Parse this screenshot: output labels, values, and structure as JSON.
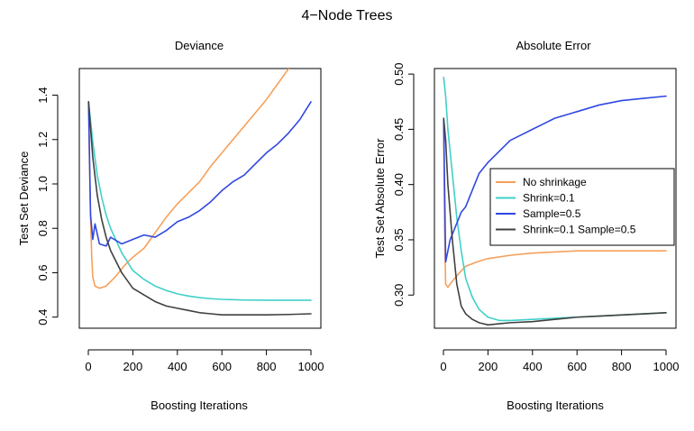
{
  "figure": {
    "title": "4−Node Trees"
  },
  "colors": {
    "no_shrinkage": "#F5A05A",
    "shrink": "#40D0C8",
    "sample": "#3048E0",
    "shrink_sample": "#404040"
  },
  "chart_data": [
    {
      "type": "line",
      "title": "Deviance",
      "xlabel": "Boosting Iterations",
      "ylabel": "Test Set Deviance",
      "xlim": [
        0,
        1000
      ],
      "ylim": [
        0.35,
        1.52
      ],
      "xticks": [
        "0",
        "200",
        "400",
        "600",
        "800",
        "1000"
      ],
      "yticks": [
        "0.4",
        "0.6",
        "0.8",
        "1.0",
        "1.2",
        "1.4"
      ],
      "grid": false,
      "legend": "none",
      "series": [
        {
          "name": "No shrinkage",
          "color": "#F5A05A",
          "x": [
            1,
            5,
            10,
            15,
            20,
            30,
            50,
            80,
            120,
            160,
            200,
            250,
            300,
            350,
            400,
            450,
            500,
            550,
            600,
            650,
            700,
            750,
            800,
            850,
            900
          ],
          "y": [
            1.37,
            1.1,
            0.85,
            0.68,
            0.58,
            0.54,
            0.53,
            0.54,
            0.58,
            0.63,
            0.67,
            0.71,
            0.78,
            0.85,
            0.91,
            0.96,
            1.01,
            1.08,
            1.14,
            1.2,
            1.26,
            1.32,
            1.38,
            1.45,
            1.52
          ]
        },
        {
          "name": "Shrink=0.1",
          "color": "#40D0C8",
          "x": [
            1,
            20,
            40,
            60,
            80,
            100,
            150,
            200,
            250,
            300,
            350,
            400,
            450,
            500,
            550,
            600,
            700,
            800,
            900,
            1000
          ],
          "y": [
            1.37,
            1.19,
            1.04,
            0.94,
            0.86,
            0.8,
            0.69,
            0.61,
            0.57,
            0.54,
            0.52,
            0.505,
            0.495,
            0.488,
            0.483,
            0.48,
            0.477,
            0.476,
            0.476,
            0.476
          ]
        },
        {
          "name": "Sample=0.5",
          "color": "#3048E0",
          "x": [
            1,
            10,
            20,
            30,
            50,
            80,
            100,
            150,
            200,
            250,
            300,
            350,
            400,
            450,
            500,
            550,
            600,
            650,
            700,
            750,
            800,
            850,
            900,
            950,
            1000
          ],
          "y": [
            1.37,
            0.86,
            0.75,
            0.82,
            0.73,
            0.72,
            0.76,
            0.73,
            0.75,
            0.77,
            0.76,
            0.79,
            0.83,
            0.85,
            0.88,
            0.92,
            0.97,
            1.01,
            1.04,
            1.09,
            1.14,
            1.18,
            1.23,
            1.29,
            1.37
          ]
        },
        {
          "name": "Shrink=0.1 Sample=0.5",
          "color": "#404040",
          "x": [
            1,
            20,
            40,
            60,
            80,
            100,
            150,
            200,
            250,
            300,
            350,
            400,
            450,
            500,
            550,
            600,
            700,
            800,
            900,
            1000
          ],
          "y": [
            1.37,
            1.12,
            0.95,
            0.84,
            0.76,
            0.7,
            0.6,
            0.53,
            0.5,
            0.47,
            0.45,
            0.44,
            0.43,
            0.42,
            0.415,
            0.41,
            0.41,
            0.41,
            0.412,
            0.415
          ]
        }
      ]
    },
    {
      "type": "line",
      "title": "Absolute Error",
      "xlabel": "Boosting Iterations",
      "ylabel": "Test Set Absolute Error",
      "xlim": [
        0,
        1000
      ],
      "ylim": [
        0.27,
        0.505
      ],
      "xticks": [
        "0",
        "200",
        "400",
        "600",
        "800",
        "1000"
      ],
      "yticks": [
        "0.30",
        "0.35",
        "0.40",
        "0.45",
        "0.50"
      ],
      "grid": false,
      "legend": "right",
      "series": [
        {
          "name": "No shrinkage",
          "color": "#F5A05A",
          "x": [
            1,
            5,
            10,
            20,
            30,
            50,
            80,
            100,
            150,
            200,
            300,
            400,
            500,
            600,
            700,
            800,
            900,
            1000
          ],
          "y": [
            0.46,
            0.36,
            0.31,
            0.307,
            0.31,
            0.315,
            0.322,
            0.326,
            0.33,
            0.333,
            0.336,
            0.338,
            0.339,
            0.34,
            0.34,
            0.34,
            0.34,
            0.34
          ]
        },
        {
          "name": "Shrink=0.1",
          "color": "#40D0C8",
          "x": [
            1,
            10,
            20,
            40,
            60,
            80,
            100,
            130,
            160,
            200,
            250,
            300,
            400,
            500,
            600,
            700,
            800,
            900,
            1000
          ],
          "y": [
            0.497,
            0.48,
            0.45,
            0.41,
            0.37,
            0.34,
            0.315,
            0.298,
            0.287,
            0.28,
            0.277,
            0.277,
            0.278,
            0.279,
            0.28,
            0.281,
            0.282,
            0.283,
            0.284
          ]
        },
        {
          "name": "Sample=0.5",
          "color": "#3048E0",
          "x": [
            1,
            10,
            20,
            30,
            40,
            60,
            80,
            100,
            130,
            160,
            200,
            250,
            300,
            350,
            400,
            450,
            500,
            550,
            600,
            700,
            800,
            900,
            1000
          ],
          "y": [
            0.458,
            0.33,
            0.34,
            0.35,
            0.355,
            0.365,
            0.375,
            0.38,
            0.395,
            0.41,
            0.42,
            0.43,
            0.44,
            0.445,
            0.45,
            0.455,
            0.46,
            0.463,
            0.466,
            0.472,
            0.476,
            0.478,
            0.48
          ]
        },
        {
          "name": "Shrink=0.1 Sample=0.5",
          "color": "#404040",
          "x": [
            1,
            10,
            20,
            40,
            60,
            80,
            100,
            130,
            160,
            200,
            250,
            300,
            400,
            500,
            600,
            700,
            800,
            900,
            1000
          ],
          "y": [
            0.46,
            0.44,
            0.4,
            0.35,
            0.31,
            0.29,
            0.283,
            0.278,
            0.275,
            0.273,
            0.274,
            0.275,
            0.276,
            0.278,
            0.28,
            0.281,
            0.282,
            0.283,
            0.284
          ]
        }
      ]
    }
  ]
}
